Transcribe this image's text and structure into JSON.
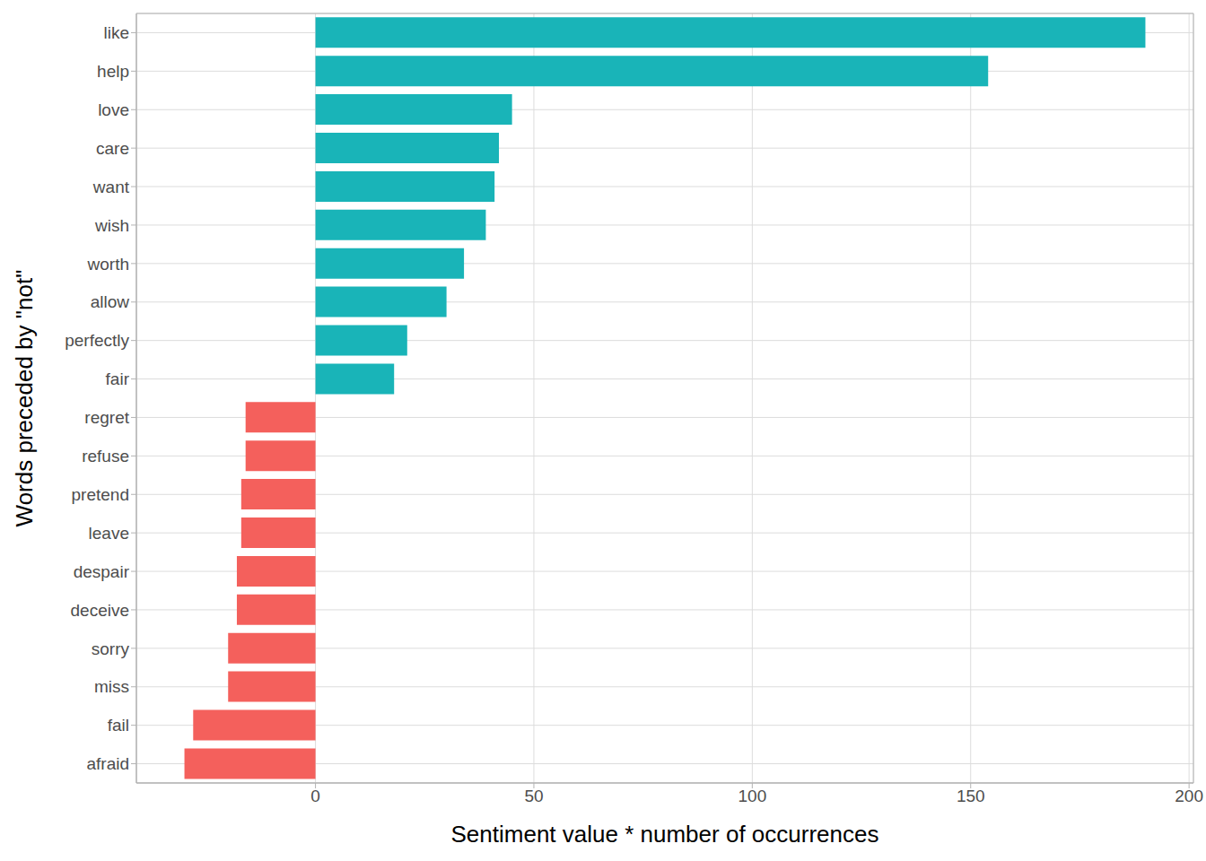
{
  "chart_data": {
    "type": "bar",
    "orientation": "horizontal",
    "x_label": "Sentiment value * number of occurrences",
    "y_label": "Words preceded by \"not\"",
    "categories": [
      "like",
      "help",
      "love",
      "care",
      "want",
      "wish",
      "worth",
      "allow",
      "perfectly",
      "fair",
      "regret",
      "refuse",
      "pretend",
      "leave",
      "despair",
      "deceive",
      "sorry",
      "miss",
      "fail",
      "afraid"
    ],
    "values": [
      190,
      154,
      45,
      42,
      41,
      39,
      34,
      30,
      21,
      18,
      -16,
      -16,
      -17,
      -17,
      -18,
      -18,
      -20,
      -20,
      -28,
      -30
    ],
    "colors": [
      "#19b4b8",
      "#19b4b8",
      "#19b4b8",
      "#19b4b8",
      "#19b4b8",
      "#19b4b8",
      "#19b4b8",
      "#19b4b8",
      "#19b4b8",
      "#19b4b8",
      "#f4605c",
      "#f4605c",
      "#f4605c",
      "#f4605c",
      "#f4605c",
      "#f4605c",
      "#f4605c",
      "#f4605c",
      "#f4605c",
      "#f4605c"
    ],
    "xlim": [
      -41,
      201
    ],
    "xticks": [
      0,
      50,
      100,
      150,
      200
    ],
    "grid": true
  }
}
